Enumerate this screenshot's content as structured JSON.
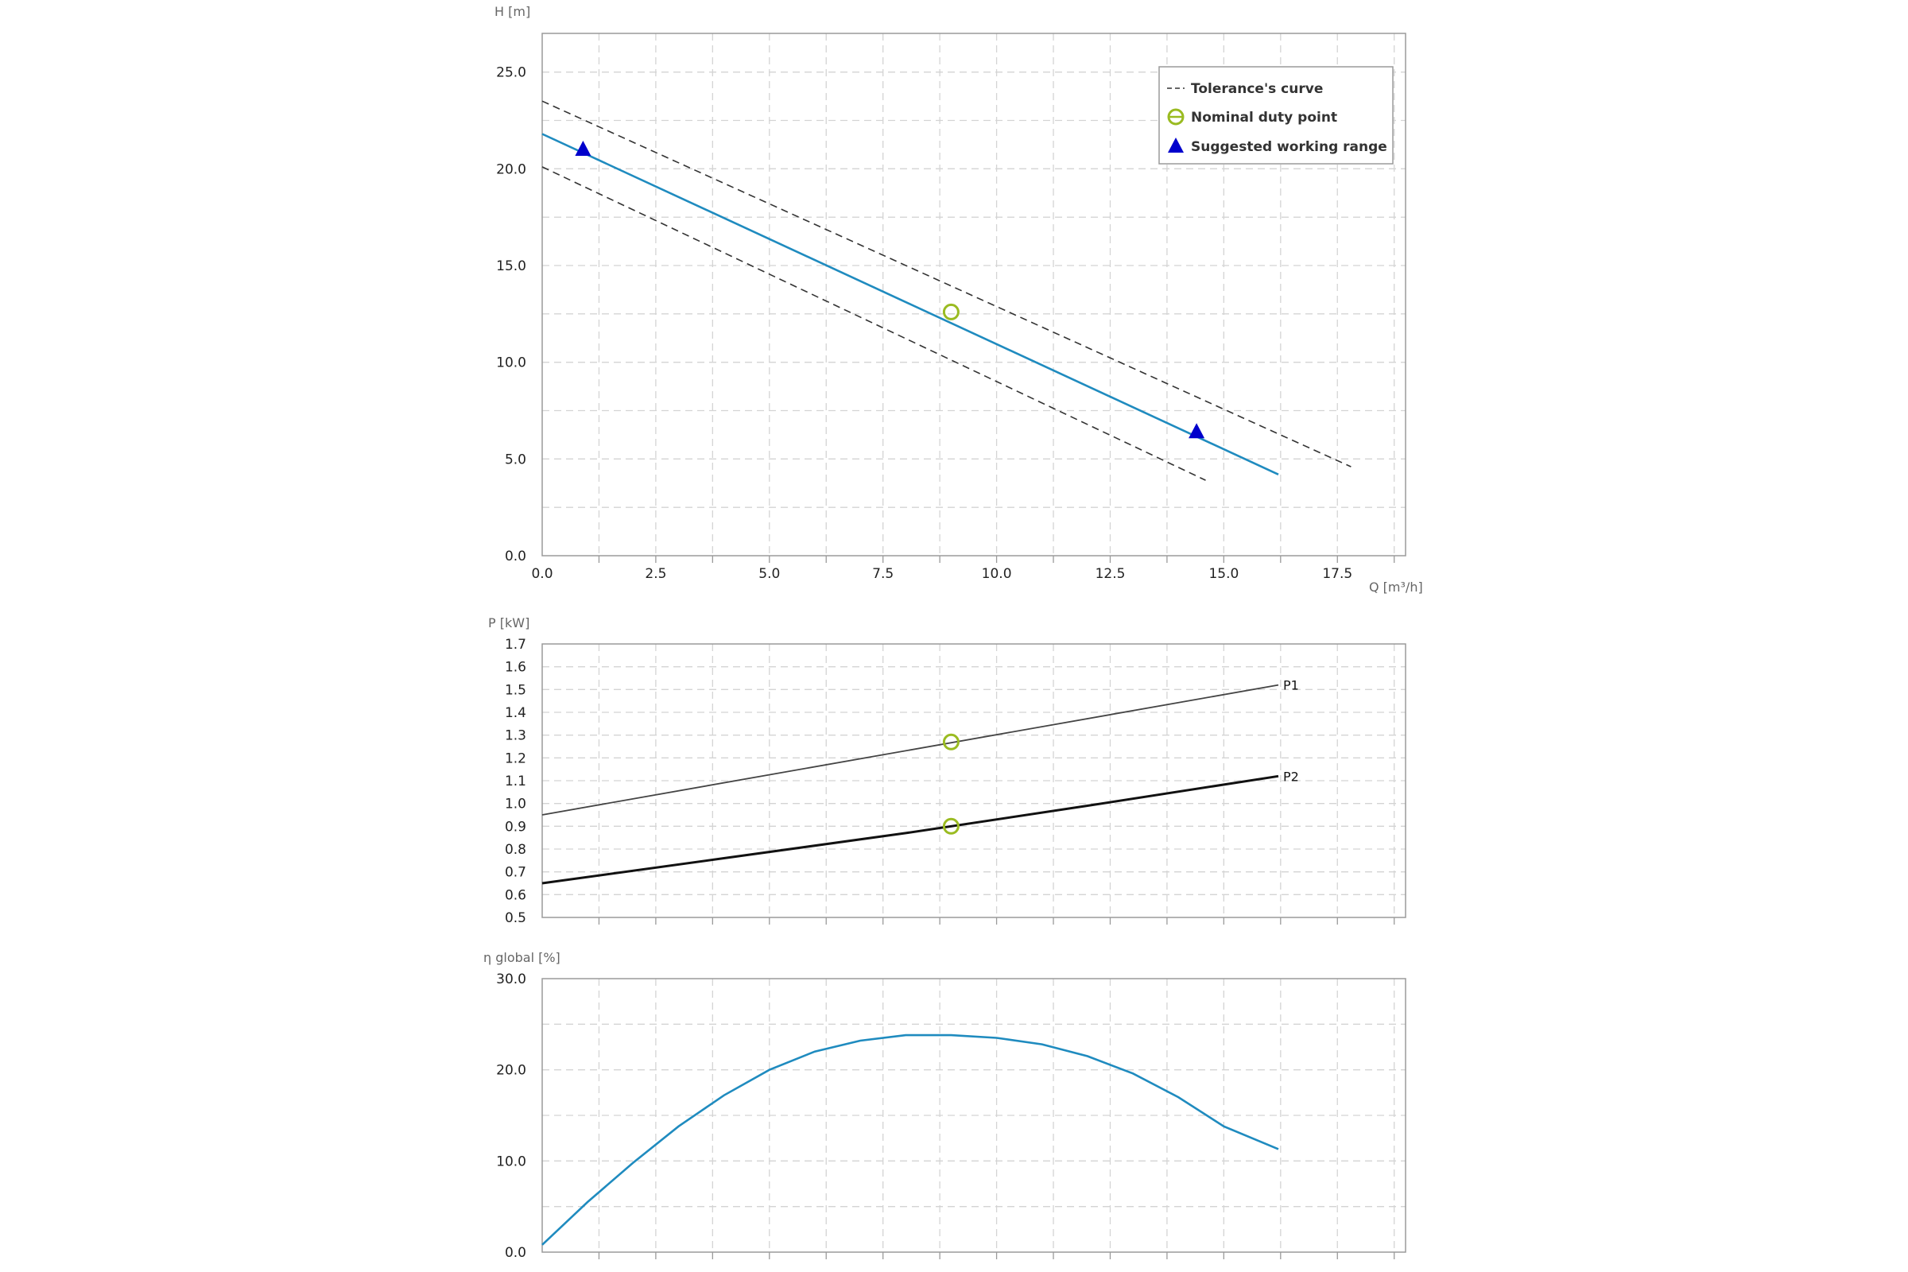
{
  "chart_data": [
    {
      "type": "line",
      "id": "head",
      "ylabel": "H [m]",
      "xlabel": "Q [m³/h]",
      "xlim": [
        0,
        19
      ],
      "ylim": [
        0,
        27
      ],
      "x_ticks": [
        "0.0",
        "2.5",
        "5.0",
        "7.5",
        "10.0",
        "12.5",
        "15.0",
        "17.5"
      ],
      "y_ticks": [
        "0.0",
        "5.0",
        "10.0",
        "15.0",
        "20.0",
        "25.0"
      ],
      "grid": true,
      "legend": {
        "position": "top-right",
        "entries": [
          "Tolerance's curve",
          "Nominal duty point",
          "Suggested working range"
        ]
      },
      "series": [
        {
          "role": "curve",
          "color": "#1f8bbf",
          "x": [
            0,
            16.2
          ],
          "y": [
            21.8,
            4.2
          ]
        },
        {
          "role": "tolerance-upper",
          "color": "#333333",
          "x": [
            0,
            17.8
          ],
          "y": [
            23.5,
            4.6
          ]
        },
        {
          "role": "tolerance-lower",
          "color": "#333333",
          "x": [
            0,
            14.6
          ],
          "y": [
            20.1,
            3.9
          ]
        }
      ],
      "nominal_duty_point": {
        "x": 9.0,
        "y": 12.6,
        "color": "#9abb21"
      },
      "suggested_working_range": [
        {
          "x": 0.9,
          "y": 21.0
        },
        {
          "x": 14.4,
          "y": 6.4
        }
      ],
      "range_color": "#0000cc"
    },
    {
      "type": "line",
      "id": "power",
      "ylabel": "P [kW]",
      "xlim": [
        0,
        19
      ],
      "ylim": [
        0.5,
        1.7
      ],
      "y_ticks": [
        "0.5",
        "0.6",
        "0.7",
        "0.8",
        "0.9",
        "1.0",
        "1.1",
        "1.2",
        "1.3",
        "1.4",
        "1.5",
        "1.6",
        "1.7"
      ],
      "grid": true,
      "series": [
        {
          "name": "P1",
          "color": "#444444",
          "x": [
            0,
            16.2
          ],
          "y": [
            0.95,
            1.52
          ]
        },
        {
          "name": "P2",
          "color": "#111111",
          "x": [
            0,
            4,
            8,
            12,
            16.2
          ],
          "y": [
            0.65,
            0.76,
            0.87,
            0.99,
            1.12
          ]
        }
      ],
      "duty_points": [
        {
          "x": 9.0,
          "y": 1.27
        },
        {
          "x": 9.0,
          "y": 0.9
        }
      ],
      "duty_color": "#9abb21"
    },
    {
      "type": "line",
      "id": "efficiency",
      "ylabel": "η global [%]",
      "xlim": [
        0,
        19
      ],
      "ylim": [
        0,
        30
      ],
      "y_ticks": [
        "0.0",
        "10.0",
        "20.0",
        "30.0"
      ],
      "grid": true,
      "series": [
        {
          "color": "#1f8bbf",
          "x": [
            0,
            1,
            2,
            3,
            4,
            5,
            6,
            7,
            8,
            9,
            10,
            11,
            12,
            13,
            14,
            15,
            16.2
          ],
          "y": [
            0.8,
            5.5,
            9.8,
            13.8,
            17.2,
            20.0,
            22.0,
            23.2,
            23.8,
            23.8,
            23.5,
            22.8,
            21.5,
            19.6,
            17.0,
            13.8,
            11.3
          ]
        }
      ]
    }
  ]
}
